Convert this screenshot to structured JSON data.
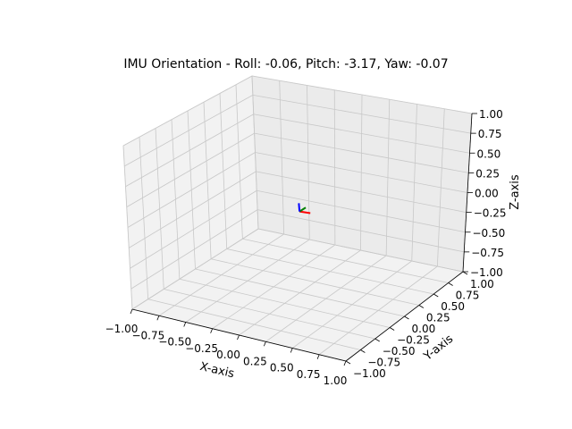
{
  "chart_data": {
    "type": "3d-quiver",
    "title": "IMU Orientation - Roll: -0.06, Pitch: -3.17, Yaw: -0.07",
    "xlabel": "X-axis",
    "ylabel": "Y-axis",
    "zlabel": "Z-axis",
    "xlim": [
      -1,
      1
    ],
    "ylim": [
      -1,
      1
    ],
    "zlim": [
      -1,
      1
    ],
    "ticks": [
      -1,
      -0.75,
      -0.5,
      -0.25,
      0,
      0.25,
      0.5,
      0.75,
      1
    ],
    "tick_labels": [
      "−1.00",
      "−0.75",
      "−0.50",
      "−0.25",
      "0.00",
      "0.25",
      "0.50",
      "0.75",
      "1.00"
    ],
    "grid": true,
    "orientation_deg": {
      "roll": -0.06,
      "pitch": -3.17,
      "yaw": -0.07
    },
    "vectors": [
      {
        "axis": "x",
        "color": "#ff0000",
        "origin": [
          0,
          0,
          0
        ],
        "direction": [
          0.1,
          0.0,
          0.006
        ]
      },
      {
        "axis": "y",
        "color": "#008000",
        "origin": [
          0,
          0,
          0
        ],
        "direction": [
          0.0,
          0.1,
          0.0
        ]
      },
      {
        "axis": "z",
        "color": "#0000ff",
        "origin": [
          0,
          0,
          0
        ],
        "direction": [
          -0.006,
          0.0,
          0.1
        ]
      }
    ]
  }
}
